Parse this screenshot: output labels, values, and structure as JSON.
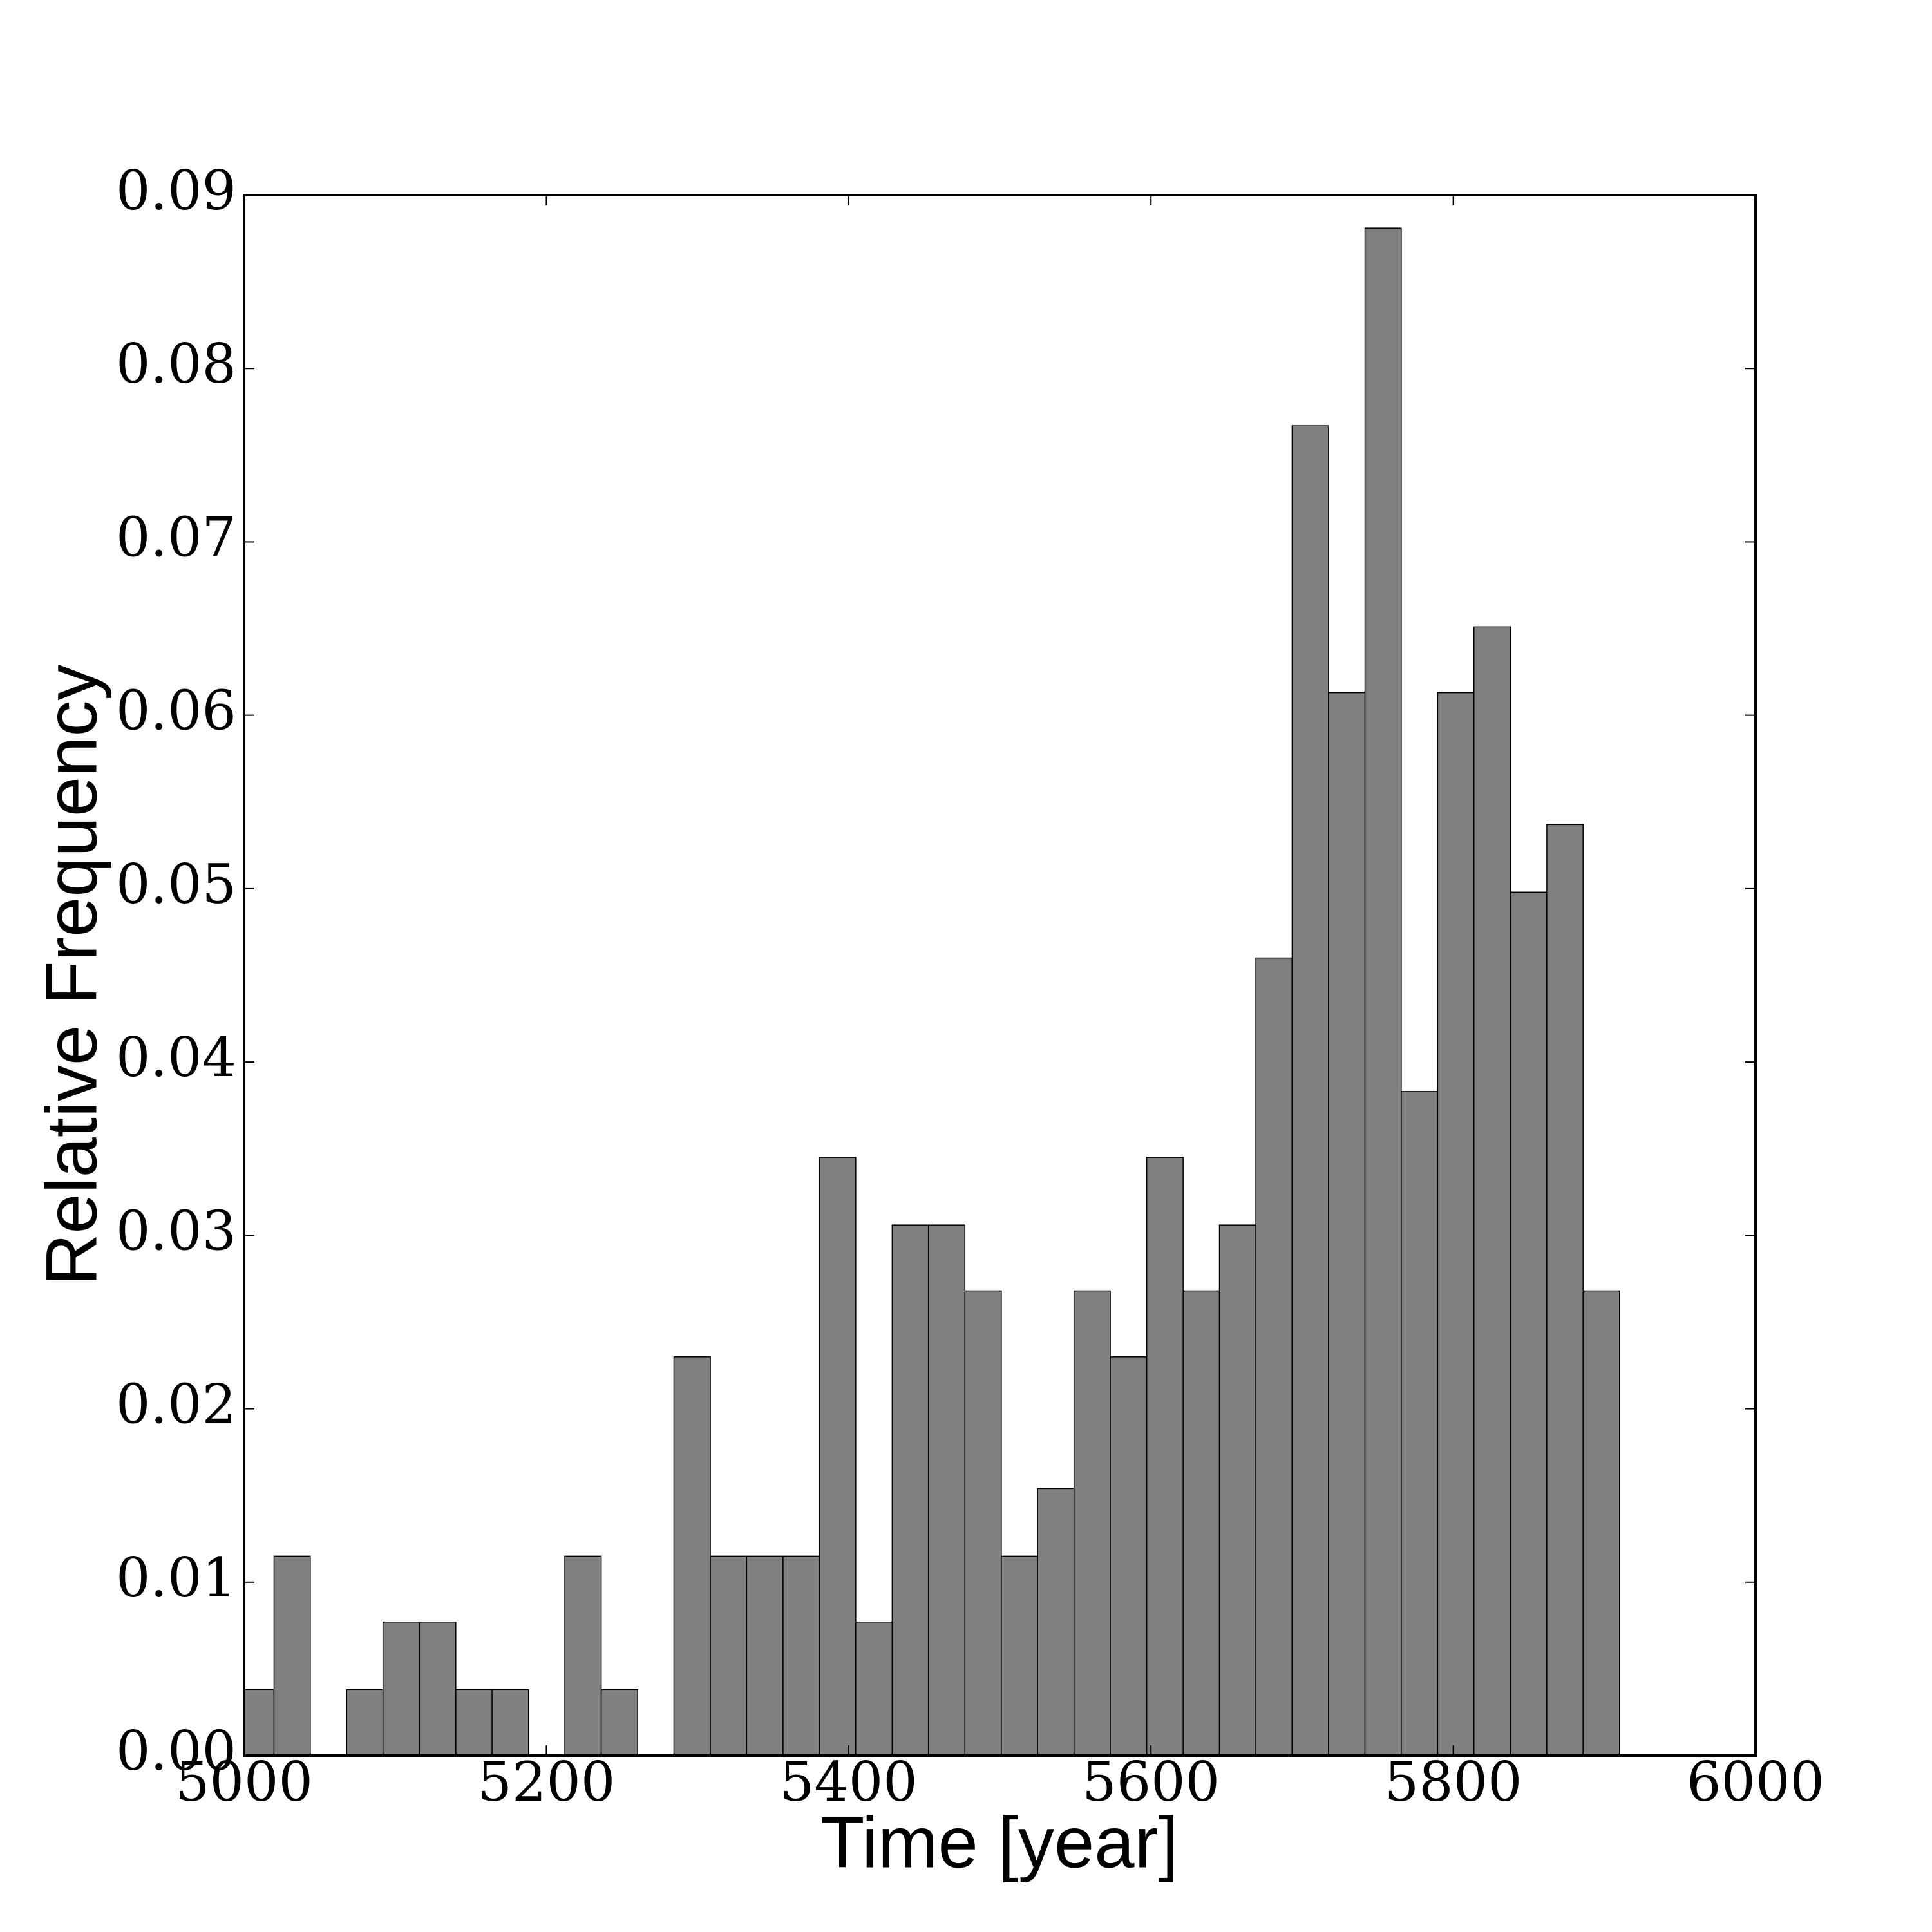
{
  "chart_data": {
    "type": "histogram",
    "x_label": "Time [year]",
    "y_label": "Relative Frequency",
    "bins": [
      4995.7,
      5019.8,
      5043.8,
      5067.9,
      5091.9,
      5116.0,
      5140.1,
      5164.1,
      5188.2,
      5212.2,
      5236.3,
      5260.4,
      5284.4,
      5308.5,
      5332.5,
      5356.6,
      5380.7,
      5404.7,
      5428.8,
      5452.8,
      5476.9,
      5501.0,
      5525.0,
      5549.1,
      5573.1,
      5597.2,
      5621.3,
      5645.3,
      5669.4,
      5693.4,
      5717.5,
      5741.6,
      5765.6,
      5789.7,
      5813.7,
      5837.8,
      5861.9,
      5885.9,
      5910.0
    ],
    "values": [
      0.0038,
      0.0115,
      0,
      0.0038,
      0.0077,
      0.0077,
      0.0038,
      0.0038,
      0,
      0.0115,
      0.0038,
      0,
      0.023,
      0.0115,
      0.0115,
      0.0115,
      0.0345,
      0.0077,
      0.0306,
      0.0306,
      0.0268,
      0.0115,
      0.0154,
      0.0268,
      0.023,
      0.0345,
      0.0268,
      0.0306,
      0.046,
      0.0767,
      0.0613,
      0.0881,
      0.0383,
      0.0613,
      0.0651,
      0.0498,
      0.0537,
      0.0268
    ],
    "color": "#808080",
    "xlim": [
      5000,
      6000
    ],
    "xticks": [
      5000,
      5200,
      5400,
      5600,
      5800,
      6000
    ],
    "ylim": [
      0,
      0.09
    ],
    "yticks": [
      {
        "value": 0,
        "label": "0.00"
      },
      0.01,
      0.02,
      0.03,
      0.04,
      0.05,
      0.06,
      0.07,
      0.08,
      0.09
    ]
  }
}
